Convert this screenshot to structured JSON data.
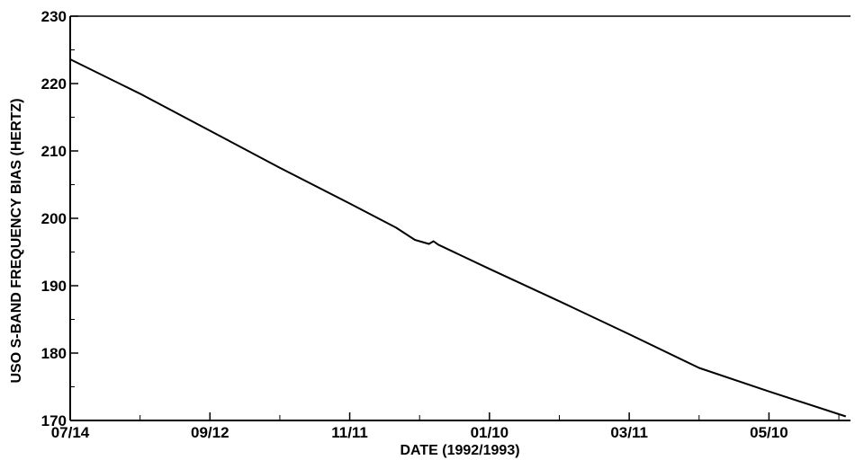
{
  "chart_data": {
    "type": "line",
    "title": "",
    "xlabel": "DATE (1992/1993)",
    "ylabel": "USO S-BAND FREQUENCY BIAS (HERTZ)",
    "ylim": [
      170,
      230
    ],
    "xlim": [
      "1992-07-14",
      "1993-06-14"
    ],
    "y_ticks": [
      170,
      180,
      190,
      200,
      210,
      220,
      230
    ],
    "x_ticks": [
      {
        "date": "1992-07-14",
        "label": "07/14"
      },
      {
        "date": "1992-09-12",
        "label": "09/12"
      },
      {
        "date": "1992-11-11",
        "label": "11/11"
      },
      {
        "date": "1993-01-10",
        "label": "01/10"
      },
      {
        "date": "1993-03-11",
        "label": "03/11"
      },
      {
        "date": "1993-05-10",
        "label": "05/10"
      }
    ],
    "grid": false,
    "series": [
      {
        "color": "#000000",
        "points": [
          {
            "x": "1992-07-14",
            "y": 223.6
          },
          {
            "x": "1992-08-13",
            "y": 218.5
          },
          {
            "x": "1992-09-12",
            "y": 213.0
          },
          {
            "x": "1992-10-12",
            "y": 207.5
          },
          {
            "x": "1992-11-11",
            "y": 202.2
          },
          {
            "x": "1992-12-01",
            "y": 198.6
          },
          {
            "x": "1992-12-09",
            "y": 196.8
          },
          {
            "x": "1992-12-15",
            "y": 196.2
          },
          {
            "x": "1992-12-17",
            "y": 196.6
          },
          {
            "x": "1992-12-19",
            "y": 196.1
          },
          {
            "x": "1993-01-10",
            "y": 192.5
          },
          {
            "x": "1993-02-09",
            "y": 187.7
          },
          {
            "x": "1993-03-11",
            "y": 182.8
          },
          {
            "x": "1993-04-10",
            "y": 177.8
          },
          {
            "x": "1993-05-10",
            "y": 174.3
          },
          {
            "x": "1993-06-12",
            "y": 170.6
          }
        ]
      }
    ]
  }
}
